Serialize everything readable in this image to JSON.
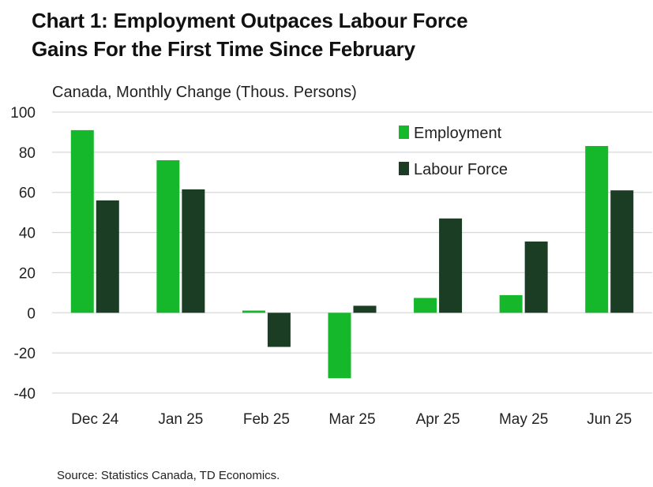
{
  "title_line1": "Chart 1: Employment Outpaces Labour Force",
  "title_line2": "Gains For the First Time Since February",
  "source": "Source: Statistics Canada, TD Economics.",
  "chart_data": {
    "type": "bar",
    "subtitle": "Canada, Monthly Change (Thous. Persons)",
    "categories": [
      "Dec 24",
      "Jan 25",
      "Feb 25",
      "Mar 25",
      "Apr 25",
      "May 25",
      "Jun 25"
    ],
    "series": [
      {
        "name": "Employment",
        "color": "#14b82a",
        "values": [
          91,
          76,
          1.1,
          -32.6,
          7.4,
          8.8,
          83.1
        ]
      },
      {
        "name": "Labour Force",
        "color": "#1a3d24",
        "values": [
          56,
          61.5,
          -17,
          3.5,
          47,
          35.5,
          61
        ]
      }
    ],
    "ylim": [
      -40,
      100
    ],
    "yticks": [
      100,
      80,
      60,
      40,
      20,
      0,
      -20,
      -40
    ],
    "ytick_labels": [
      "100",
      "80",
      "60",
      "40",
      "20",
      "0",
      "-20",
      "-40"
    ],
    "grid": true,
    "legend_position": "top-right"
  }
}
